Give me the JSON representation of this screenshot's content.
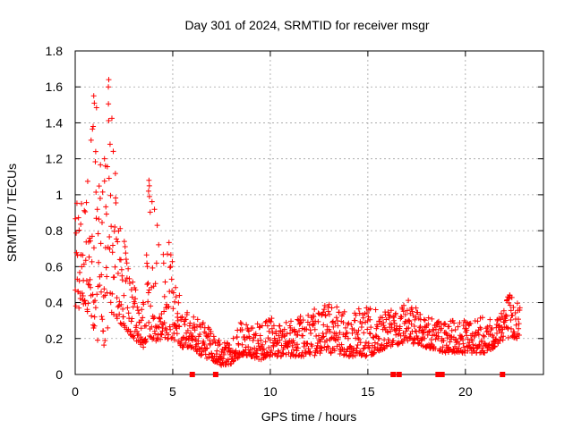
{
  "chart_data": {
    "type": "scatter",
    "title": "Day 301 of 2024, SRMTID for receiver msgr",
    "xlabel": "GPS time / hours",
    "ylabel": "SRMTID / TECUs",
    "xlim": [
      0,
      24
    ],
    "ylim": [
      0,
      1.8
    ],
    "x_ticks": [
      0,
      5,
      10,
      15,
      20
    ],
    "x_tick_labels": [
      "0",
      "5",
      "10",
      "15",
      "20"
    ],
    "y_ticks": [
      0,
      0.2,
      0.4,
      0.6,
      0.8,
      1,
      1.2,
      1.4,
      1.6,
      1.8
    ],
    "y_tick_labels": [
      "0",
      "0.2",
      "0.4",
      "0.6",
      "0.8",
      "1",
      "1.2",
      "1.4",
      "1.6",
      "1.8"
    ],
    "grid": true,
    "marker": "+",
    "marker_color": "#ff0000",
    "envelope": [
      {
        "x": 0.0,
        "min": 0.35,
        "max": 0.98
      },
      {
        "x": 0.5,
        "min": 0.4,
        "max": 0.95
      },
      {
        "x": 1.0,
        "min": 0.2,
        "max": 1.55
      },
      {
        "x": 1.5,
        "min": 0.15,
        "max": 1.2
      },
      {
        "x": 1.8,
        "min": 0.35,
        "max": 1.65
      },
      {
        "x": 2.2,
        "min": 0.3,
        "max": 0.9
      },
      {
        "x": 2.6,
        "min": 0.25,
        "max": 0.82
      },
      {
        "x": 3.0,
        "min": 0.2,
        "max": 0.5
      },
      {
        "x": 3.5,
        "min": 0.15,
        "max": 0.45
      },
      {
        "x": 3.8,
        "min": 0.2,
        "max": 1.09
      },
      {
        "x": 4.3,
        "min": 0.18,
        "max": 0.8
      },
      {
        "x": 4.8,
        "min": 0.2,
        "max": 0.75
      },
      {
        "x": 5.0,
        "min": 0.2,
        "max": 0.65
      },
      {
        "x": 5.5,
        "min": 0.15,
        "max": 0.35
      },
      {
        "x": 6.0,
        "min": 0.15,
        "max": 0.35
      },
      {
        "x": 6.5,
        "min": 0.1,
        "max": 0.3
      },
      {
        "x": 7.0,
        "min": 0.08,
        "max": 0.25
      },
      {
        "x": 7.5,
        "min": 0.05,
        "max": 0.18
      },
      {
        "x": 8.0,
        "min": 0.06,
        "max": 0.18
      },
      {
        "x": 8.5,
        "min": 0.1,
        "max": 0.3
      },
      {
        "x": 9.0,
        "min": 0.1,
        "max": 0.28
      },
      {
        "x": 9.5,
        "min": 0.08,
        "max": 0.3
      },
      {
        "x": 10.0,
        "min": 0.1,
        "max": 0.32
      },
      {
        "x": 11.0,
        "min": 0.1,
        "max": 0.3
      },
      {
        "x": 12.0,
        "min": 0.1,
        "max": 0.35
      },
      {
        "x": 13.0,
        "min": 0.12,
        "max": 0.42
      },
      {
        "x": 14.0,
        "min": 0.1,
        "max": 0.35
      },
      {
        "x": 15.0,
        "min": 0.1,
        "max": 0.38
      },
      {
        "x": 16.0,
        "min": 0.15,
        "max": 0.35
      },
      {
        "x": 17.0,
        "min": 0.18,
        "max": 0.45
      },
      {
        "x": 18.0,
        "min": 0.15,
        "max": 0.32
      },
      {
        "x": 19.0,
        "min": 0.12,
        "max": 0.3
      },
      {
        "x": 20.0,
        "min": 0.12,
        "max": 0.3
      },
      {
        "x": 21.0,
        "min": 0.12,
        "max": 0.35
      },
      {
        "x": 21.5,
        "min": 0.15,
        "max": 0.3
      },
      {
        "x": 22.0,
        "min": 0.2,
        "max": 0.48
      },
      {
        "x": 22.8,
        "min": 0.2,
        "max": 0.42
      }
    ],
    "baseline_markers_x": [
      6.0,
      7.2,
      16.3,
      16.6,
      18.6,
      18.8,
      21.9
    ]
  }
}
